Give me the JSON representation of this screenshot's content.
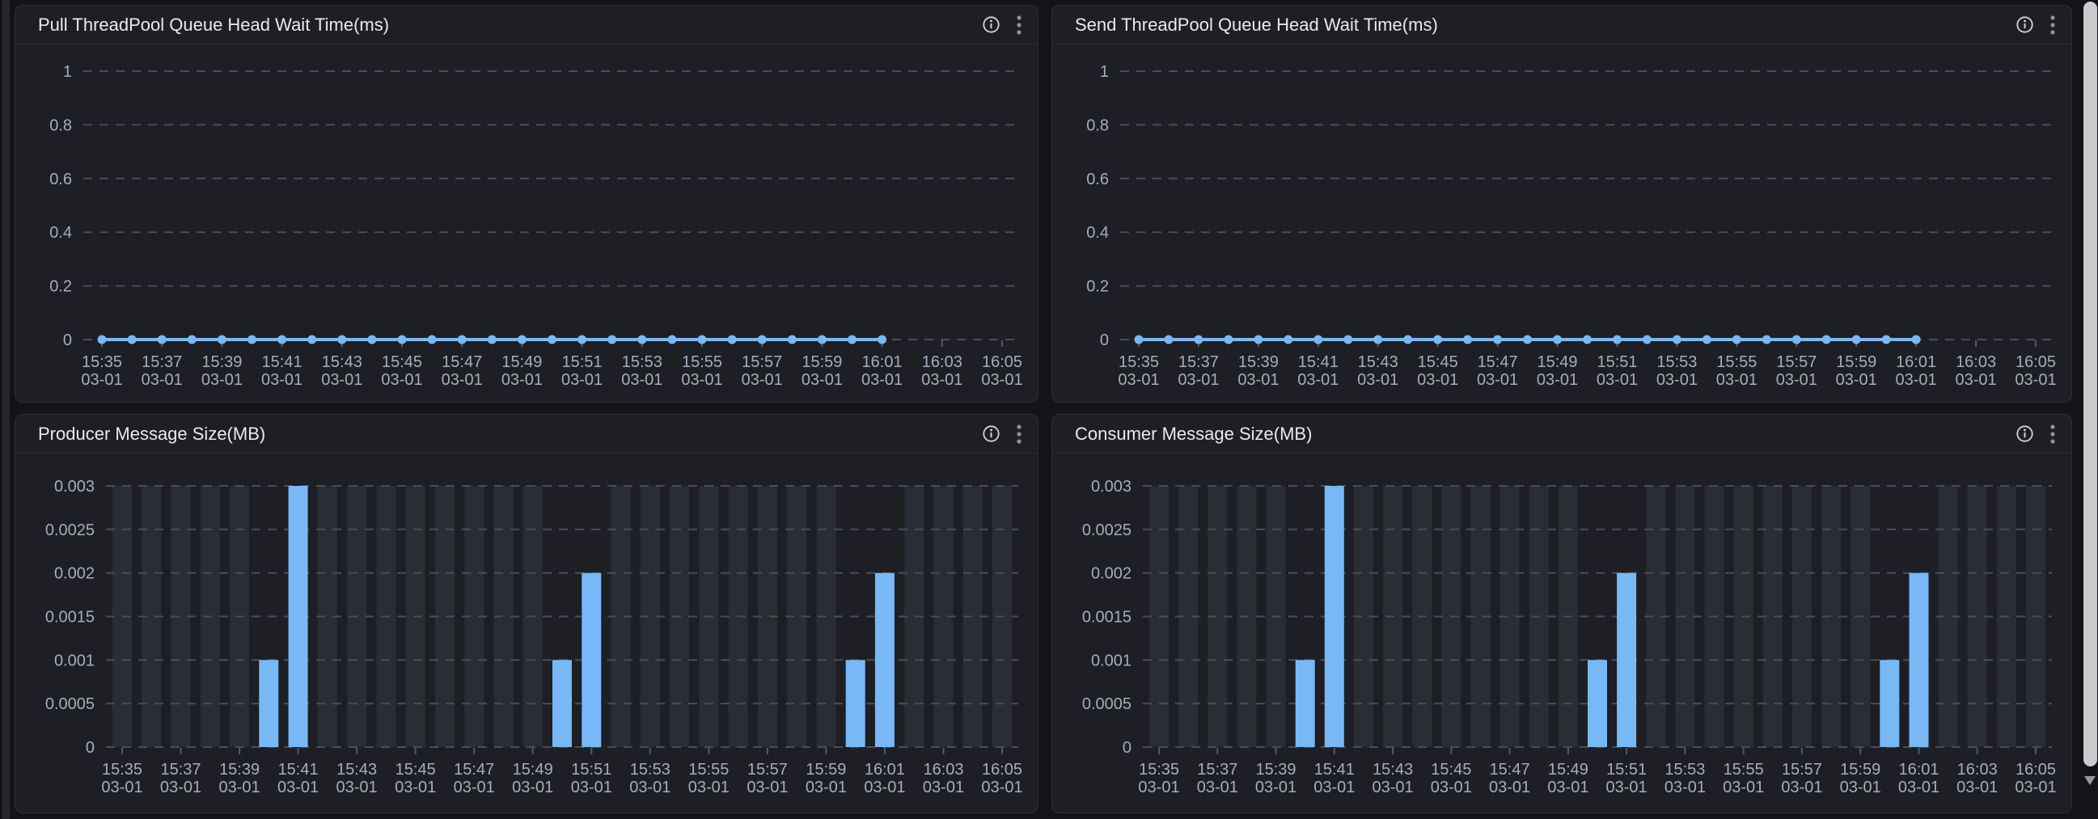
{
  "colors": {
    "page_bg": "#131418",
    "panel_bg": "#1d1f24",
    "series_blue": "#79b8f6",
    "background_bar_gray": "#2a2d33",
    "grid_dash": "#4a4e55",
    "axis_label": "#a7adb8",
    "title_text": "#e8eaed"
  },
  "icons": {
    "info": "circle-i",
    "menu": "kebab-vertical",
    "scroll_down": "triangle-down"
  },
  "panels": [
    {
      "position": "top-left"
    },
    {
      "position": "top-right"
    },
    {
      "position": "bottom-left"
    },
    {
      "position": "bottom-right"
    }
  ],
  "chart_data": [
    {
      "type": "line",
      "title": "Pull ThreadPool Queue Head Wait Time(ms)",
      "xlabel": "",
      "ylabel": "",
      "ylim": [
        0,
        1
      ],
      "yticks": [
        0,
        0.2,
        0.4,
        0.6,
        0.8,
        1
      ],
      "ytick_labels": [
        "0",
        "0.2",
        "0.4",
        "0.6",
        "0.8",
        "1"
      ],
      "grid": "dashed-horizontal",
      "legend": "none",
      "xtick_date": "03-01",
      "xlabel_every": 2,
      "categories": [
        "15:35",
        "15:36",
        "15:37",
        "15:38",
        "15:39",
        "15:40",
        "15:41",
        "15:42",
        "15:43",
        "15:44",
        "15:45",
        "15:46",
        "15:47",
        "15:48",
        "15:49",
        "15:50",
        "15:51",
        "15:52",
        "15:53",
        "15:54",
        "15:55",
        "15:56",
        "15:57",
        "15:58",
        "15:59",
        "16:00",
        "16:01",
        "16:02",
        "16:03",
        "16:04",
        "16:05"
      ],
      "values": [
        0,
        0,
        0,
        0,
        0,
        0,
        0,
        0,
        0,
        0,
        0,
        0,
        0,
        0,
        0,
        0,
        0,
        0,
        0,
        0,
        0,
        0,
        0,
        0,
        0,
        0,
        0,
        null,
        null,
        null,
        null
      ]
    },
    {
      "type": "line",
      "title": "Send ThreadPool Queue Head Wait Time(ms)",
      "xlabel": "",
      "ylabel": "",
      "ylim": [
        0,
        1
      ],
      "yticks": [
        0,
        0.2,
        0.4,
        0.6,
        0.8,
        1
      ],
      "ytick_labels": [
        "0",
        "0.2",
        "0.4",
        "0.6",
        "0.8",
        "1"
      ],
      "grid": "dashed-horizontal",
      "legend": "none",
      "xtick_date": "03-01",
      "xlabel_every": 2,
      "categories": [
        "15:35",
        "15:36",
        "15:37",
        "15:38",
        "15:39",
        "15:40",
        "15:41",
        "15:42",
        "15:43",
        "15:44",
        "15:45",
        "15:46",
        "15:47",
        "15:48",
        "15:49",
        "15:50",
        "15:51",
        "15:52",
        "15:53",
        "15:54",
        "15:55",
        "15:56",
        "15:57",
        "15:58",
        "15:59",
        "16:00",
        "16:01",
        "16:02",
        "16:03",
        "16:04",
        "16:05"
      ],
      "values": [
        0,
        0,
        0,
        0,
        0,
        0,
        0,
        0,
        0,
        0,
        0,
        0,
        0,
        0,
        0,
        0,
        0,
        0,
        0,
        0,
        0,
        0,
        0,
        0,
        0,
        0,
        0,
        null,
        null,
        null,
        null
      ]
    },
    {
      "type": "bar",
      "title": "Producer Message Size(MB)",
      "xlabel": "",
      "ylabel": "",
      "ylim": [
        0,
        0.003
      ],
      "yticks": [
        0,
        0.0005,
        0.001,
        0.0015,
        0.002,
        0.0025,
        0.003
      ],
      "ytick_labels": [
        "0",
        "0.0005",
        "0.001",
        "0.0015",
        "0.002",
        "0.0025",
        "0.003"
      ],
      "grid": "dashed-horizontal",
      "legend": "none",
      "background_bars": true,
      "xtick_date": "03-01",
      "xlabel_every": 2,
      "categories": [
        "15:35",
        "15:36",
        "15:37",
        "15:38",
        "15:39",
        "15:40",
        "15:41",
        "15:42",
        "15:43",
        "15:44",
        "15:45",
        "15:46",
        "15:47",
        "15:48",
        "15:49",
        "15:50",
        "15:51",
        "15:52",
        "15:53",
        "15:54",
        "15:55",
        "15:56",
        "15:57",
        "15:58",
        "15:59",
        "16:00",
        "16:01",
        "16:02",
        "16:03",
        "16:04",
        "16:05"
      ],
      "values": [
        0,
        0,
        0,
        0,
        0,
        0.001,
        0.003,
        0,
        0,
        0,
        0,
        0,
        0,
        0,
        0,
        0.001,
        0.002,
        0,
        0,
        0,
        0,
        0,
        0,
        0,
        0,
        0.001,
        0.002,
        0,
        0,
        0,
        0
      ]
    },
    {
      "type": "bar",
      "title": "Consumer Message Size(MB)",
      "xlabel": "",
      "ylabel": "",
      "ylim": [
        0,
        0.003
      ],
      "yticks": [
        0,
        0.0005,
        0.001,
        0.0015,
        0.002,
        0.0025,
        0.003
      ],
      "ytick_labels": [
        "0",
        "0.0005",
        "0.001",
        "0.0015",
        "0.002",
        "0.0025",
        "0.003"
      ],
      "grid": "dashed-horizontal",
      "legend": "none",
      "background_bars": true,
      "xtick_date": "03-01",
      "xlabel_every": 2,
      "categories": [
        "15:35",
        "15:36",
        "15:37",
        "15:38",
        "15:39",
        "15:40",
        "15:41",
        "15:42",
        "15:43",
        "15:44",
        "15:45",
        "15:46",
        "15:47",
        "15:48",
        "15:49",
        "15:50",
        "15:51",
        "15:52",
        "15:53",
        "15:54",
        "15:55",
        "15:56",
        "15:57",
        "15:58",
        "15:59",
        "16:00",
        "16:01",
        "16:02",
        "16:03",
        "16:04",
        "16:05"
      ],
      "values": [
        0,
        0,
        0,
        0,
        0,
        0.001,
        0.003,
        0,
        0,
        0,
        0,
        0,
        0,
        0,
        0,
        0.001,
        0.002,
        0,
        0,
        0,
        0,
        0,
        0,
        0,
        0,
        0.001,
        0.002,
        0,
        0,
        0,
        0
      ]
    }
  ]
}
